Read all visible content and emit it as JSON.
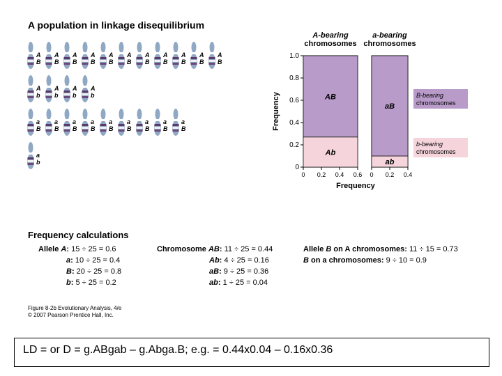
{
  "title": "A population in linkage disequilibrium",
  "chromosomes": {
    "rows": [
      {
        "count": 11,
        "alleleA": "A",
        "alleleB": "B"
      },
      {
        "count": 4,
        "alleleA": "A",
        "alleleB": "b"
      },
      {
        "count": 9,
        "alleleA": "a",
        "alleleB": "B"
      },
      {
        "count": 1,
        "alleleA": "a",
        "alleleB": "b"
      }
    ],
    "arm_color": "#8fa8c4",
    "band_colors": [
      "#5a3a6a",
      "#f0f0f0",
      "#6a4a7a"
    ],
    "label_font_size": 9
  },
  "chart": {
    "col1_title": "A-bearing\nchromosomes",
    "col2_title": "a-bearing\nchromosomes",
    "ylabel": "Frequency",
    "xlabel": "Frequency",
    "ylim": [
      0,
      1.0
    ],
    "yticks": [
      0,
      0.2,
      0.4,
      0.6,
      0.8,
      1.0
    ],
    "col1_xticks": [
      0,
      0.2,
      0.4,
      0.6
    ],
    "col2_xticks": [
      0,
      0.2,
      0.4
    ],
    "col1": {
      "width": 0.6,
      "segments": [
        {
          "label": "Ab",
          "height": 0.27,
          "color": "#f5d4dc"
        },
        {
          "label": "AB",
          "height": 0.73,
          "color": "#b89bc9"
        }
      ]
    },
    "col2": {
      "width": 0.4,
      "segments": [
        {
          "label": "ab",
          "height": 0.1,
          "color": "#f5d4dc"
        },
        {
          "label": "aB",
          "height": 0.9,
          "color": "#b89bc9"
        }
      ]
    },
    "side_labels": [
      {
        "text": "B-bearing\nchromosomes",
        "color": "#b89bc9"
      },
      {
        "text": "b-bearing\nchromosomes",
        "color": "#f5d4dc"
      }
    ],
    "axis_color": "#000000",
    "grid_color": "#cccccc"
  },
  "freq_calc": {
    "heading": "Frequency calculations",
    "allele_heading": "Allele",
    "allele_calcs": [
      {
        "name": "A",
        "calc": "15 ÷ 25 = 0.6"
      },
      {
        "name": "a",
        "calc": "10 ÷ 25 = 0.4"
      },
      {
        "name": "B",
        "calc": "20 ÷ 25 = 0.8"
      },
      {
        "name": "b",
        "calc": "5 ÷ 25 = 0.2"
      }
    ],
    "chrom_heading": "Chromosome",
    "chrom_calcs": [
      {
        "name": "AB",
        "calc": "11 ÷ 25 = 0.44"
      },
      {
        "name": "Ab",
        "calc": "4 ÷ 25 = 0.16"
      },
      {
        "name": "aB",
        "calc": "9 ÷ 25 = 0.36"
      },
      {
        "name": "ab",
        "calc": "1 ÷ 25 = 0.04"
      }
    ],
    "cond_heading": "Allele",
    "cond_calcs": [
      {
        "name": "B on A chromosomes",
        "calc": "11 ÷ 15 = 0.73"
      },
      {
        "name": "B on a chromosomes",
        "calc": "9 ÷ 10 = 0.9"
      }
    ]
  },
  "citation": {
    "line1": "Figure 8-2b Evolutionary Analysis, 4/e",
    "line2": "© 2007 Pearson Prentice Hall, Inc."
  },
  "footer_formula": "LD =  or D = g.ABgab – g.Abga.B; e.g. = 0.44x0.04 – 0.16x0.36"
}
